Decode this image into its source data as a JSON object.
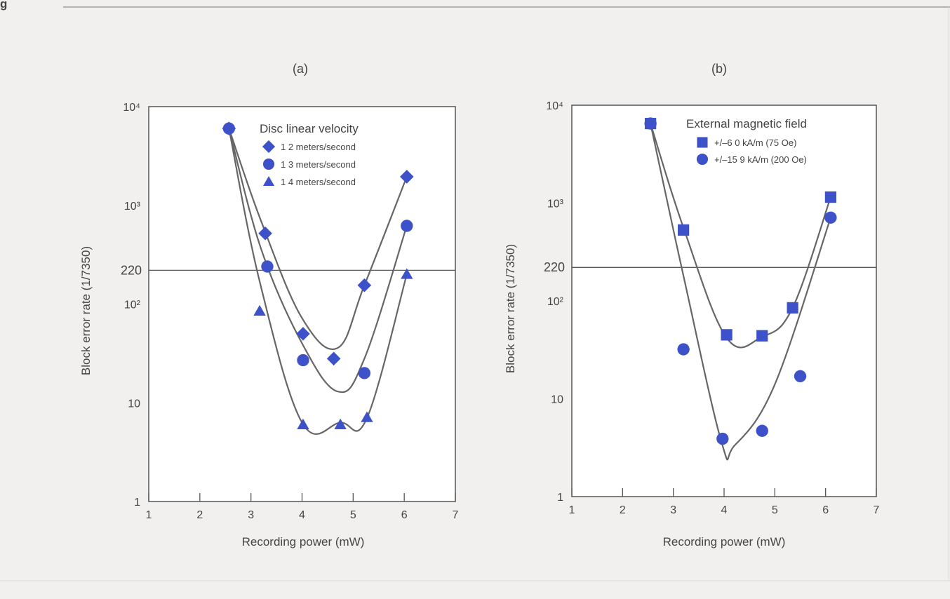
{
  "figure": {
    "top_label": "g"
  },
  "chart_data": [
    {
      "type": "scatter",
      "panel_label": "(a)",
      "xlabel": "Recording power (mW)",
      "ylabel": "Block error rate (1/7350)",
      "xlim": [
        1,
        7
      ],
      "ylim": [
        1,
        10000
      ],
      "y_scale": "log",
      "x_ticks": [
        1,
        2,
        3,
        4,
        5,
        6,
        7
      ],
      "y_ticks": [
        {
          "value": 1,
          "label": "1"
        },
        {
          "value": 10,
          "label": "10"
        },
        {
          "value": 100,
          "label": "10²"
        },
        {
          "value": 1000,
          "label": "10³"
        },
        {
          "value": 10000,
          "label": "10⁴"
        }
      ],
      "reference_line": {
        "value": 220,
        "label": "220"
      },
      "legend": {
        "title": "Disc linear velocity",
        "position": "top-right",
        "entries": [
          {
            "label": "1 2 meters/second",
            "marker": "diamond"
          },
          {
            "label": "1 3 meters/second",
            "marker": "circle"
          },
          {
            "label": "1 4 meters/second",
            "marker": "triangle"
          }
        ]
      },
      "series": [
        {
          "marker": "diamond",
          "points": [
            [
              2.57,
              6000
            ],
            [
              3.28,
              520
            ],
            [
              4.02,
              50
            ],
            [
              4.62,
              28
            ],
            [
              5.22,
              155
            ],
            [
              6.05,
              1950
            ]
          ],
          "curve": [
            [
              2.57,
              6000
            ],
            [
              3.2,
              690
            ],
            [
              4.0,
              72
            ],
            [
              4.7,
              36
            ],
            [
              5.22,
              155
            ],
            [
              6.05,
              1950
            ]
          ]
        },
        {
          "marker": "circle",
          "points": [
            [
              2.57,
              6000
            ],
            [
              3.32,
              240
            ],
            [
              4.02,
              27
            ],
            [
              5.22,
              20
            ],
            [
              6.05,
              620
            ]
          ],
          "curve": [
            [
              2.57,
              6000
            ],
            [
              3.2,
              360
            ],
            [
              4.0,
              40
            ],
            [
              4.7,
              13
            ],
            [
              5.22,
              28
            ],
            [
              6.05,
              620
            ]
          ]
        },
        {
          "marker": "triangle",
          "points": [
            [
              3.17,
              85
            ],
            [
              4.02,
              6
            ],
            [
              4.75,
              6
            ],
            [
              5.27,
              7.1
            ],
            [
              6.05,
              200
            ]
          ],
          "curve": [
            [
              2.57,
              6000
            ],
            [
              3.17,
              170
            ],
            [
              4.0,
              6.3
            ],
            [
              4.75,
              6.3
            ],
            [
              5.27,
              7.0
            ],
            [
              6.05,
              200
            ]
          ]
        }
      ]
    },
    {
      "type": "scatter",
      "panel_label": "(b)",
      "xlabel": "Recording power (mW)",
      "ylabel": "Block error rate (1/7350)",
      "xlim": [
        1,
        7
      ],
      "ylim": [
        1,
        10000
      ],
      "y_scale": "log",
      "x_ticks": [
        1,
        2,
        3,
        4,
        5,
        6,
        7
      ],
      "y_ticks": [
        {
          "value": 1,
          "label": "1"
        },
        {
          "value": 10,
          "label": "10"
        },
        {
          "value": 100,
          "label": "10²"
        },
        {
          "value": 1000,
          "label": "10³"
        },
        {
          "value": 10000,
          "label": "10⁴"
        }
      ],
      "reference_line": {
        "value": 220,
        "label": "220"
      },
      "legend": {
        "title": "External magnetic field",
        "position": "top-right",
        "entries": [
          {
            "label": "+/–6 0 kA/m (75 Oe)",
            "marker": "square"
          },
          {
            "label": "+/–15 9 kA/m (200 Oe)",
            "marker": "circle"
          }
        ]
      },
      "series": [
        {
          "marker": "square",
          "points": [
            [
              2.55,
              6500
            ],
            [
              3.2,
              530
            ],
            [
              4.05,
              45
            ],
            [
              4.75,
              44
            ],
            [
              5.35,
              85
            ],
            [
              6.1,
              1150
            ]
          ],
          "curve": [
            [
              2.55,
              6500
            ],
            [
              3.2,
              560
            ],
            [
              4.05,
              42
            ],
            [
              4.75,
              43
            ],
            [
              5.35,
              85
            ],
            [
              6.1,
              1150
            ]
          ]
        },
        {
          "marker": "circle",
          "points": [
            [
              2.55,
              6500
            ],
            [
              3.2,
              32
            ],
            [
              3.97,
              3.9
            ],
            [
              4.75,
              4.7
            ],
            [
              5.5,
              17
            ],
            [
              6.1,
              710
            ]
          ],
          "curve": [
            [
              2.55,
              6500
            ],
            [
              3.2,
              180
            ],
            [
              3.95,
              3.6
            ],
            [
              4.2,
              3.3
            ],
            [
              5.0,
              14
            ],
            [
              6.1,
              710
            ]
          ]
        }
      ]
    }
  ]
}
